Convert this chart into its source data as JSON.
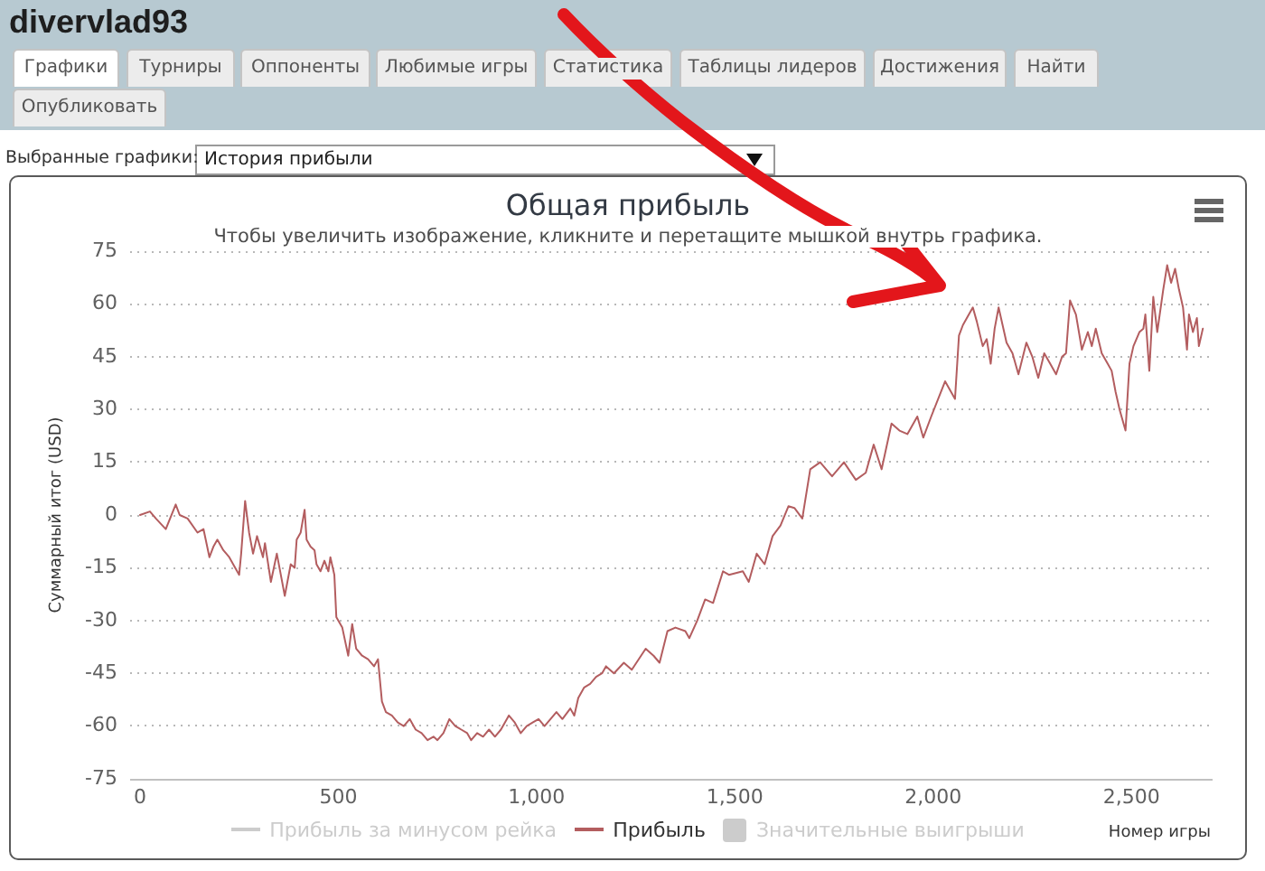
{
  "chart_data": {
    "type": "line",
    "title": "Общая прибыль",
    "subtitle": "Чтобы увеличить изображение, кликните и перетащите мышкой внутрь графика.",
    "xlabel": "Номер игры",
    "ylabel": "Суммарный итог (USD)",
    "annotations": [
      "divervlad93",
      "Графики",
      "Турниры",
      "Оппоненты",
      "Любимые игры",
      "Статистика",
      "Таблицы лидеров",
      "Достижения",
      "Найти",
      "Опубликовать",
      "Выбранные графики:",
      "История прибыли"
    ],
    "x": [
      0,
      25,
      40,
      65,
      90,
      100,
      120,
      145,
      160,
      175,
      185,
      195,
      210,
      225,
      240,
      250,
      255,
      265,
      275,
      285,
      295,
      310,
      315,
      330,
      345,
      355,
      365,
      380,
      390,
      395,
      405,
      415,
      420,
      430,
      440,
      445,
      455,
      465,
      475,
      480,
      490,
      495,
      510,
      525,
      535,
      545,
      560,
      575,
      590,
      600,
      610,
      620,
      635,
      650,
      665,
      680,
      695,
      710,
      725,
      740,
      750,
      765,
      780,
      795,
      810,
      825,
      835,
      850,
      865,
      880,
      895,
      910,
      930,
      945,
      960,
      975,
      990,
      1005,
      1020,
      1035,
      1050,
      1065,
      1085,
      1095,
      1105,
      1120,
      1135,
      1150,
      1165,
      1175,
      1195,
      1220,
      1240,
      1275,
      1295,
      1310,
      1330,
      1350,
      1375,
      1385,
      1405,
      1425,
      1445,
      1470,
      1485,
      1520,
      1535,
      1555,
      1575,
      1595,
      1615,
      1635,
      1650,
      1670,
      1690,
      1715,
      1745,
      1775,
      1805,
      1830,
      1850,
      1870,
      1895,
      1915,
      1935,
      1960,
      1975,
      1995,
      2030,
      2055,
      2065,
      2075,
      2090,
      2100,
      2110,
      2125,
      2135,
      2145,
      2155,
      2165,
      2175,
      2185,
      2200,
      2215,
      2235,
      2250,
      2265,
      2280,
      2295,
      2310,
      2325,
      2335,
      2345,
      2360,
      2375,
      2390,
      2400,
      2410,
      2425,
      2440,
      2450,
      2460,
      2470,
      2485,
      2495,
      2505,
      2520,
      2530,
      2535,
      2545,
      2555,
      2565,
      2580,
      2590,
      2600,
      2610,
      2620,
      2630,
      2640,
      2645,
      2655,
      2665,
      2670,
      2680
    ],
    "series": [
      {
        "name": "Прибыль за минусом рейка",
        "color": "#cccccc",
        "values": [
          null,
          null,
          null,
          null,
          null,
          null,
          null,
          null,
          null,
          null,
          null,
          null,
          null,
          null,
          null,
          null,
          null,
          null,
          null,
          null,
          null,
          null,
          null,
          null,
          null,
          null,
          null,
          null,
          null,
          null,
          null,
          null,
          null,
          null,
          null,
          null,
          null,
          null,
          null,
          null,
          null,
          null,
          null,
          null,
          null,
          null,
          null,
          null,
          null,
          null,
          null,
          null,
          null,
          null,
          null,
          null,
          null,
          null,
          null,
          null,
          null,
          null,
          null,
          null,
          null,
          null,
          null,
          null,
          null,
          null,
          null,
          null,
          null,
          null,
          null,
          null,
          null,
          null,
          null,
          null,
          null,
          null,
          null,
          null,
          null,
          null,
          null,
          null,
          null,
          null,
          null,
          null,
          null,
          null,
          null,
          null,
          null,
          null,
          null,
          null,
          null,
          null,
          null,
          null,
          null,
          null,
          null,
          null,
          null,
          null,
          null,
          null,
          null,
          null,
          null,
          null,
          null,
          null,
          null,
          null,
          null,
          null,
          null,
          null,
          null,
          null,
          null,
          null,
          null,
          null,
          null,
          null,
          null,
          null,
          null,
          null,
          null,
          null,
          null,
          null,
          null,
          null,
          null,
          null,
          null,
          null,
          null,
          null,
          null,
          null,
          null,
          null,
          null,
          null,
          null,
          null,
          null,
          null,
          null,
          null,
          null,
          null,
          null,
          null,
          null,
          null,
          null,
          null,
          null,
          null,
          null,
          null,
          null,
          null,
          null,
          null,
          null,
          null,
          null,
          null,
          null,
          null,
          null,
          null
        ]
      },
      {
        "name": "Прибыль",
        "color": "#b35d5f",
        "values": [
          0,
          1,
          -1,
          -4,
          3,
          0,
          -1,
          -5,
          -4,
          -12,
          -9,
          -7,
          -10,
          -12,
          -15,
          -17,
          -11,
          4,
          -5,
          -11,
          -6,
          -12,
          -8,
          -19,
          -11,
          -17,
          -23,
          -14,
          -15,
          -7,
          -5,
          1.5,
          -7,
          -9,
          -10,
          -14,
          -16,
          -13,
          -16,
          -12,
          -17,
          -29,
          -32,
          -40,
          -31,
          -38,
          -40,
          -41,
          -43,
          -41,
          -53,
          -56,
          -57,
          -59,
          -60,
          -58,
          -61,
          -62,
          -64,
          -63,
          -64,
          -62,
          -58,
          -60,
          -61,
          -62,
          -64,
          -62,
          -63,
          -61,
          -63,
          -61,
          -57,
          -59,
          -62,
          -60,
          -59,
          -58,
          -60,
          -58,
          -56,
          -58,
          -55,
          -57,
          -52,
          -49,
          -48,
          -46,
          -45,
          -43,
          -45,
          -42,
          -44,
          -38,
          -40,
          -42,
          -33,
          -32,
          -33,
          -35,
          -30,
          -24,
          -25,
          -16,
          -17,
          -16,
          -19,
          -11,
          -14,
          -6,
          -3,
          2.5,
          2,
          -1,
          13,
          15,
          11,
          15,
          10,
          12,
          20,
          13,
          26,
          24,
          23,
          28,
          22,
          28,
          38,
          33,
          51,
          54,
          57,
          59,
          55,
          48,
          50,
          43,
          53,
          59,
          54,
          49,
          46,
          40,
          49,
          45,
          39,
          46,
          43,
          40,
          45,
          46,
          61,
          57,
          47,
          52,
          48,
          53,
          46,
          43,
          41,
          35,
          30,
          24,
          43,
          48,
          52,
          53,
          57,
          41,
          62,
          52,
          64,
          71,
          66,
          70,
          64,
          59,
          47,
          57,
          52,
          56,
          48,
          53
        ]
      },
      {
        "name": "Значительные выигрыши",
        "type": "scatter",
        "marker": "square",
        "color": "#cccccc",
        "values": [
          null,
          null,
          null,
          null,
          null,
          null,
          null,
          null,
          null,
          null,
          null,
          null,
          null,
          null,
          null,
          null,
          null,
          null,
          null,
          null,
          null,
          null,
          null,
          null,
          null,
          null,
          null,
          null,
          null,
          null,
          null,
          null,
          null,
          null,
          null,
          null,
          null,
          null,
          null,
          null,
          null,
          null,
          null,
          null,
          null,
          null,
          null,
          null,
          null,
          null,
          null,
          null,
          null,
          null,
          null,
          null,
          null,
          null,
          null,
          null,
          null,
          null,
          null,
          null,
          null,
          null,
          null,
          null,
          null,
          null,
          null,
          null,
          null,
          null,
          null,
          null,
          null,
          null,
          null,
          null,
          null,
          null,
          null,
          null,
          null,
          null,
          null,
          null,
          null,
          null,
          null,
          null,
          null,
          null,
          null,
          null,
          null,
          null,
          null,
          null,
          null,
          null,
          null,
          null,
          null,
          null,
          null,
          null,
          null,
          null,
          null,
          null,
          null,
          null,
          null,
          null,
          null,
          null,
          null,
          null,
          null,
          null,
          null,
          null,
          null,
          null,
          null,
          null,
          null,
          null,
          null,
          null,
          null,
          null,
          null,
          null,
          null,
          null,
          null,
          null,
          null,
          null,
          null,
          null,
          null,
          null,
          null,
          null,
          null,
          null,
          null,
          null,
          null,
          null,
          null,
          null,
          null,
          null,
          null,
          null,
          null,
          null,
          null,
          null,
          null,
          null,
          null,
          null,
          null,
          null,
          null,
          null,
          null,
          null,
          null,
          null,
          null,
          null,
          null,
          null,
          null,
          null,
          null,
          null
        ]
      }
    ],
    "xlim": [
      -25,
      2700
    ],
    "xticks": [
      0,
      500,
      {
        "value": 1000,
        "label": "1,000"
      },
      {
        "value": 1500,
        "label": "1,500"
      },
      {
        "value": 2000,
        "label": "2,000"
      },
      {
        "value": 2500,
        "label": "2,500"
      }
    ],
    "ylim": [
      -75,
      75
    ],
    "yticks": [
      -75,
      -60,
      -45,
      -30,
      -15,
      0,
      15,
      30,
      45,
      60,
      75
    ],
    "grid": "y",
    "legend": "bottom",
    "marker": "none"
  }
}
